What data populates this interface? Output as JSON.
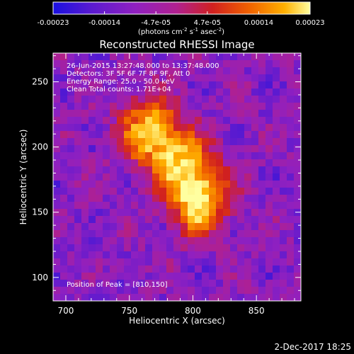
{
  "colorbar": {
    "ticks": [
      "-0.00023",
      "-0.00014",
      "-4.7e-05",
      "4.7e-05",
      "0.00014",
      "0.00023"
    ],
    "unit_label": "(photons cm",
    "unit_sup1": "-2",
    "unit_mid": " s",
    "unit_sup2": "-1",
    "unit_end": " asec",
    "unit_sup3": "-2",
    "unit_close": ")",
    "colors": [
      "#1a10e0",
      "#5a1ad0",
      "#9020c0",
      "#b02090",
      "#d02020",
      "#f06000",
      "#ffb000",
      "#ffffa0"
    ]
  },
  "plot": {
    "title": "Reconstructed RHESSI Image",
    "info_lines": [
      "26-Jun-2015 13:27:48.000 to 13:37:48.000",
      "Detectors: 3F 5F 6F 7F 8F 9F, Att 0",
      "Energy Range: 25.0 - 50.0 keV",
      "Clean     Total counts: 1.71E+04"
    ],
    "peak_label": "Position of Peak = [810,150]",
    "footer_date": "2-Dec-2017 18:25"
  },
  "chart_data": {
    "type": "heatmap",
    "title": "Reconstructed RHESSI Image",
    "xlabel": "Heliocentric X (arcsec)",
    "ylabel": "Heliocentric Y (arcsec)",
    "xlim": [
      690,
      885
    ],
    "ylim": [
      82,
      272
    ],
    "xticks": [
      700,
      750,
      800,
      850
    ],
    "yticks": [
      100,
      150,
      200,
      250
    ],
    "peak": [
      810,
      150
    ],
    "sources": [
      {
        "x": 765,
        "y": 212,
        "intensity": 0.85
      },
      {
        "x": 805,
        "y": 160,
        "intensity": 1.0
      },
      {
        "x": 790,
        "y": 190,
        "intensity": 0.65
      }
    ],
    "colorbar_range": [
      -0.00023,
      0.00023
    ]
  }
}
